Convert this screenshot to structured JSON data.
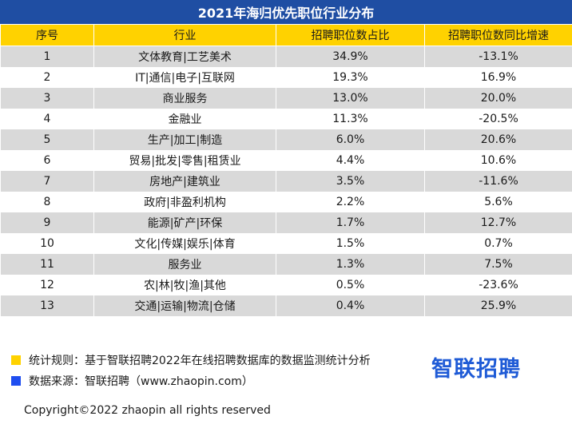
{
  "title": "2021年海归优先职位行业分布",
  "colors": {
    "title_bg": "#1f4ea3",
    "header_bg": "#ffd200",
    "row_shaded": "#d9d9d9",
    "note_yellow": "#ffd200",
    "note_blue": "#1f4ef0",
    "logo": "#1f5bd6"
  },
  "table": {
    "headers": [
      "序号",
      "行业",
      "招聘职位数占比",
      "招聘职位数同比增速"
    ],
    "rows": [
      [
        "1",
        "文体教育|工艺美术",
        "34.9%",
        "-13.1%"
      ],
      [
        "2",
        "IT|通信|电子|互联网",
        "19.3%",
        "16.9%"
      ],
      [
        "3",
        "商业服务",
        "13.0%",
        "20.0%"
      ],
      [
        "4",
        "金融业",
        "11.3%",
        "-20.5%"
      ],
      [
        "5",
        "生产|加工|制造",
        "6.0%",
        "20.6%"
      ],
      [
        "6",
        "贸易|批发|零售|租赁业",
        "4.4%",
        "10.6%"
      ],
      [
        "7",
        "房地产|建筑业",
        "3.5%",
        "-11.6%"
      ],
      [
        "8",
        "政府|非盈利机构",
        "2.2%",
        "5.6%"
      ],
      [
        "9",
        "能源|矿产|环保",
        "1.7%",
        "12.7%"
      ],
      [
        "10",
        "文化|传媒|娱乐|体育",
        "1.5%",
        "0.7%"
      ],
      [
        "11",
        "服务业",
        "1.3%",
        "7.5%"
      ],
      [
        "12",
        "农|林|牧|渔|其他",
        "0.5%",
        "-23.6%"
      ],
      [
        "13",
        "交通|运输|物流|仓储",
        "0.4%",
        "25.9%"
      ]
    ]
  },
  "notes": {
    "rule": "统计规则：基于智联招聘2022年在线招聘数据库的数据监测统计分析",
    "source": "数据来源：智联招聘（www.zhaopin.com）"
  },
  "logo_text": "智联招聘",
  "copyright": "Copyright©2022 zhaopin all rights reserved"
}
